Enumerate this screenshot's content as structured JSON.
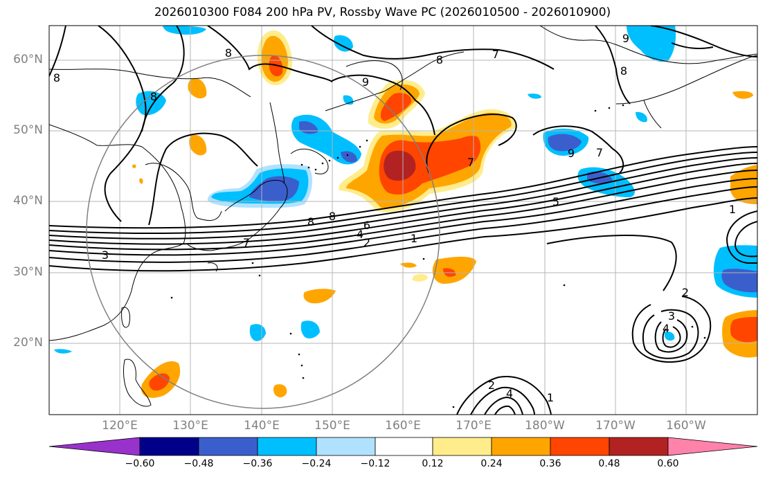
{
  "title": "2026010300 F084 200 hPa PV, Rossby Wave PC (2026010500 - 2026010900)",
  "lat_labels": [
    "60°N",
    "50°N",
    "40°N",
    "30°N",
    "20°N"
  ],
  "lon_labels": [
    "120°E",
    "130°E",
    "140°E",
    "150°E",
    "160°E",
    "170°E",
    "180°W",
    "170°W",
    "160°W"
  ],
  "contour_labels": [
    "8",
    "8",
    "8",
    "9",
    "8",
    "7",
    "9",
    "8",
    "9",
    "7",
    "7",
    "5",
    "1",
    "1",
    "6",
    "4",
    "2",
    "3",
    "7",
    "8",
    "8",
    "2",
    "3",
    "4",
    "2",
    "4",
    "1"
  ],
  "colorbar": {
    "ticks": [
      "−0.60",
      "−0.48",
      "−0.36",
      "−0.24",
      "−0.12",
      "0.12",
      "0.24",
      "0.36",
      "0.48",
      "0.60"
    ],
    "colors": [
      "#9932cc",
      "#00008b",
      "#3a5fcd",
      "#00bfff",
      "#b0e2ff",
      "#ffffff",
      "#ffec8b",
      "#ffa500",
      "#ff4500",
      "#b22222",
      "#ff82ab"
    ]
  }
}
